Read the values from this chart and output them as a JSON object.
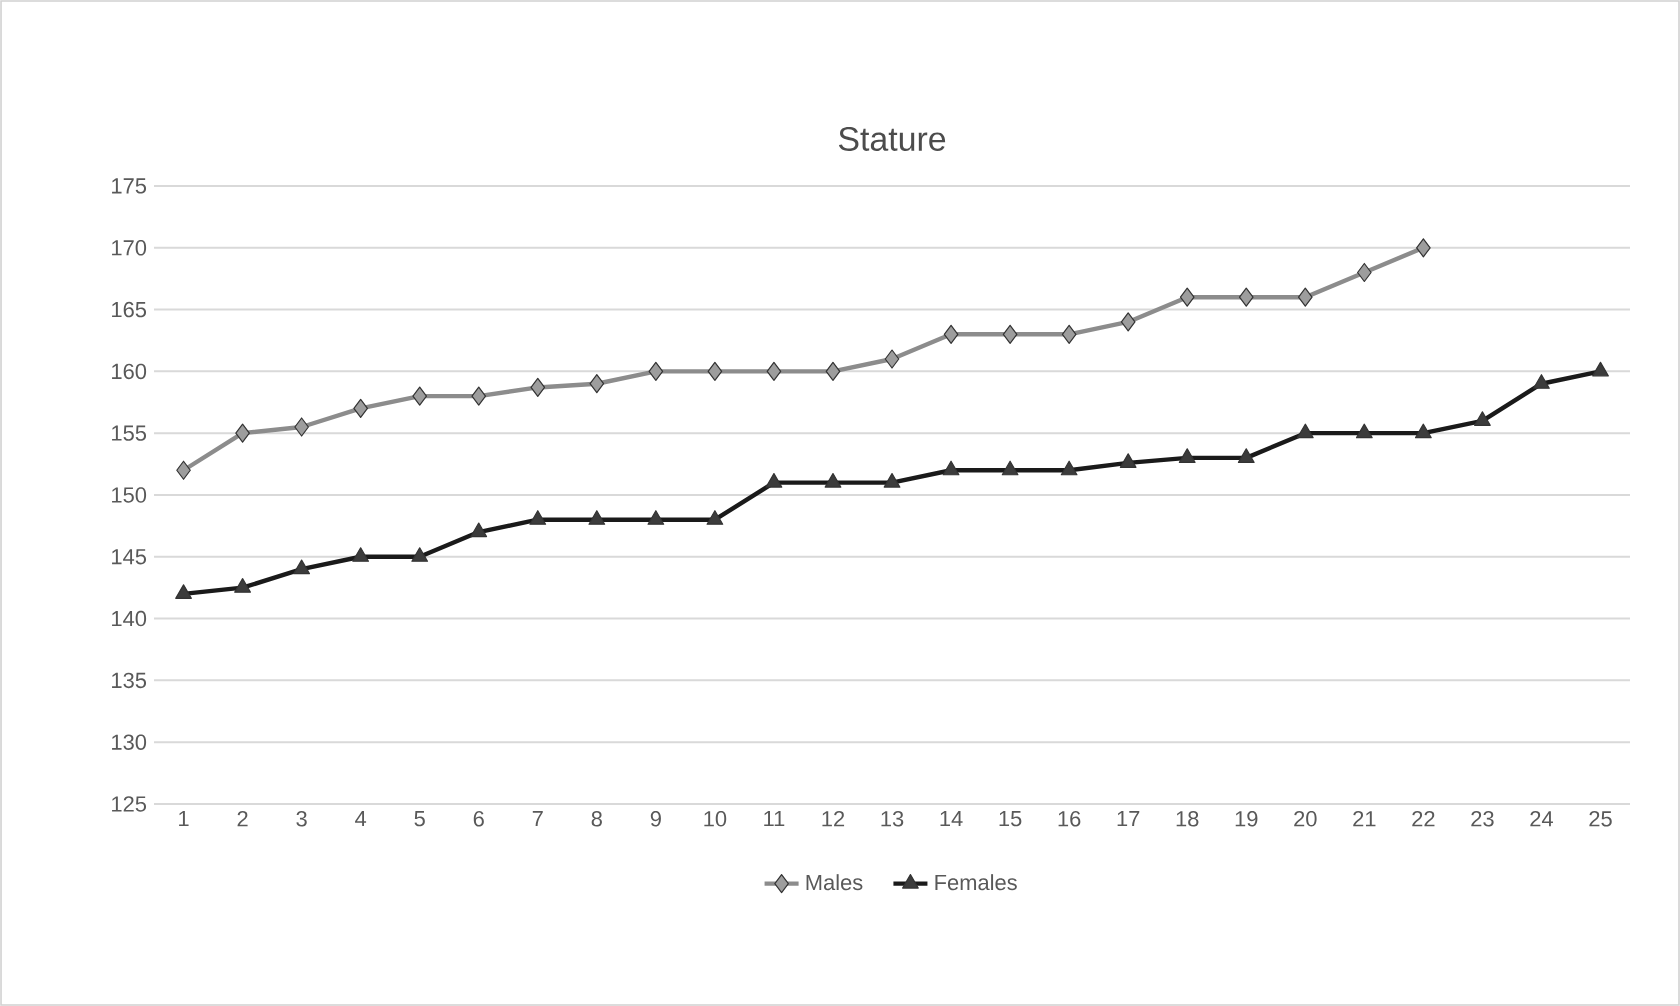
{
  "chart_data": {
    "type": "line",
    "title": "Stature",
    "categories": [
      "1",
      "2",
      "3",
      "4",
      "5",
      "6",
      "7",
      "8",
      "9",
      "10",
      "11",
      "12",
      "13",
      "14",
      "15",
      "16",
      "17",
      "18",
      "19",
      "20",
      "21",
      "22",
      "23",
      "24",
      "25"
    ],
    "series": [
      {
        "name": "Males",
        "color": "#8c8c8c",
        "marker": "diamond",
        "values": [
          152,
          155,
          155.5,
          157,
          158,
          158,
          158.7,
          159,
          160,
          160,
          160,
          160,
          161,
          163,
          163,
          163,
          164,
          166,
          166,
          166,
          168,
          170,
          null,
          null,
          null
        ]
      },
      {
        "name": "Females",
        "color": "#1a1a1a",
        "marker": "triangle",
        "values": [
          142,
          142.5,
          144,
          145,
          145,
          147,
          148,
          148,
          148,
          148,
          151,
          151,
          151,
          152,
          152,
          152,
          152.6,
          153,
          153,
          155,
          155,
          155,
          156,
          159,
          160
        ]
      }
    ],
    "ylim": [
      125,
      175
    ],
    "yticks": [
      125,
      130,
      135,
      140,
      145,
      150,
      155,
      160,
      165,
      170,
      175
    ],
    "grid": "y",
    "legend": "bottom",
    "line_style": "solid"
  }
}
